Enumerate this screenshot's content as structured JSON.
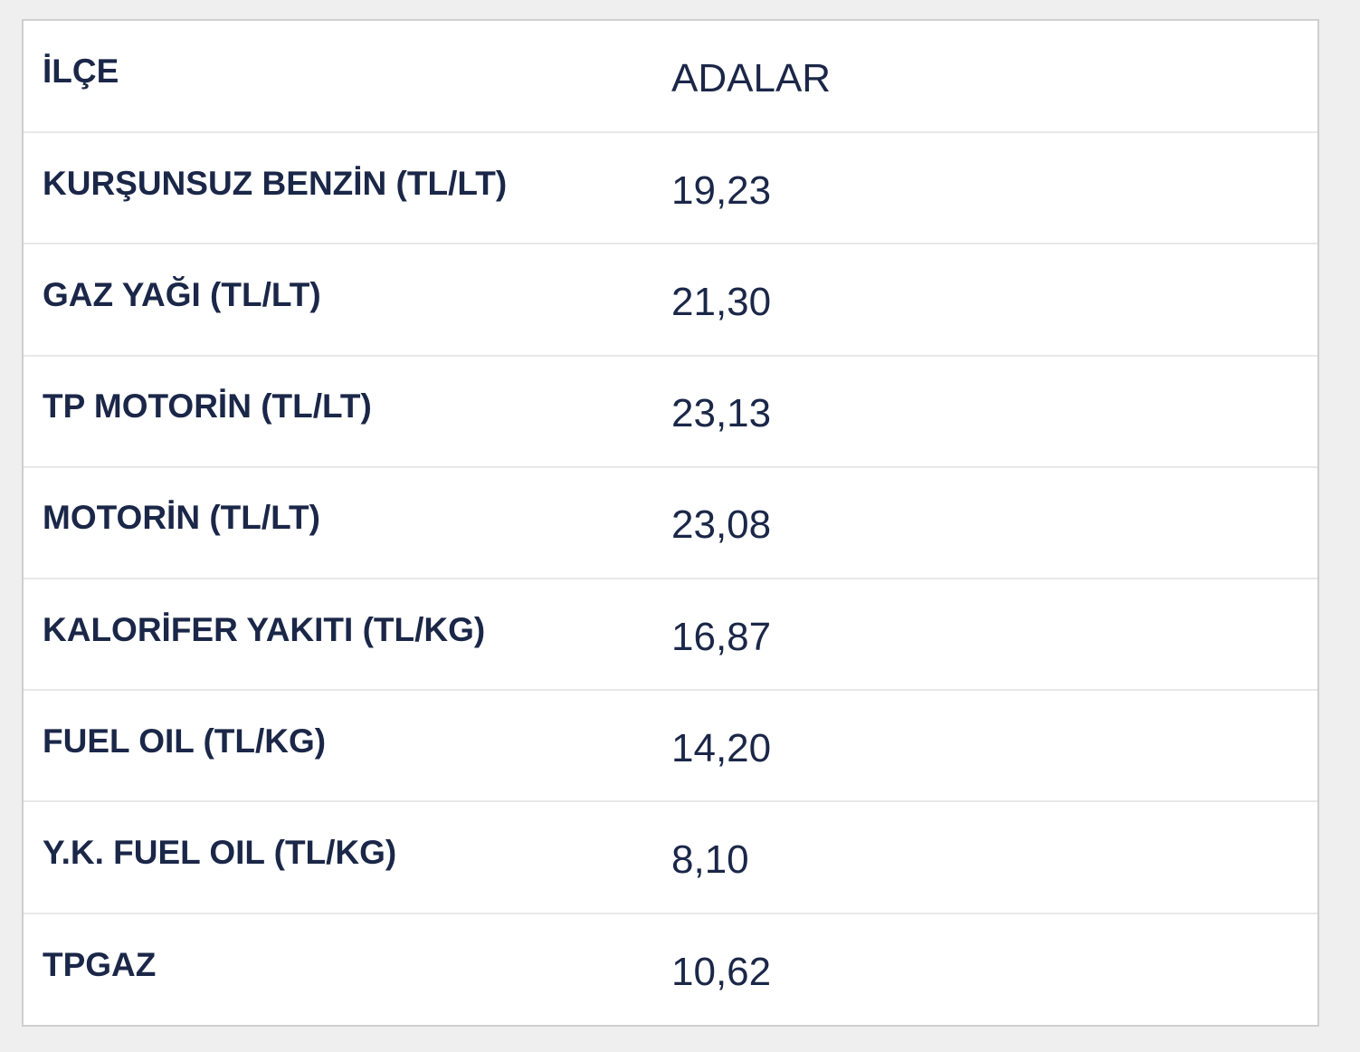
{
  "table": {
    "rows": [
      [
        "İLÇE",
        "ADALAR"
      ],
      [
        "KURŞUNSUZ BENZİN (TL/LT)",
        "19,23"
      ],
      [
        "GAZ YAĞI (TL/LT)",
        "21,30"
      ],
      [
        "TP MOTORİN (TL/LT)",
        "23,13"
      ],
      [
        "MOTORİN (TL/LT)",
        "23,08"
      ],
      [
        "KALORİFER YAKITI (TL/KG)",
        "16,87"
      ],
      [
        "FUEL OIL (TL/KG)",
        "14,20"
      ],
      [
        "Y.K. FUEL OIL (TL/KG)",
        "8,10"
      ],
      [
        "TPGAZ",
        "10,62"
      ]
    ]
  }
}
